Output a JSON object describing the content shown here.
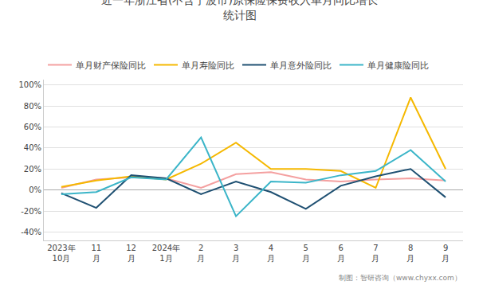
{
  "chart_data": {
    "type": "line",
    "title": "近一年浙江省(不含宁波市)原保险保费收入单月同比增长\n统计图",
    "categories": [
      "2023年\n10月",
      "11\n月",
      "12\n月",
      "2024年\n1月",
      "2\n月",
      "3\n月",
      "4\n月",
      "5\n月",
      "6\n月",
      "7\n月",
      "8\n月",
      "9\n月"
    ],
    "series": [
      {
        "name": "单月财产保险同比",
        "color": "#F4A0A0",
        "values": [
          0.02,
          0.1,
          0.12,
          0.11,
          0.02,
          0.15,
          0.17,
          0.1,
          0.08,
          0.1,
          0.11,
          0.09
        ]
      },
      {
        "name": "单月寿险同比",
        "color": "#F5B800",
        "values": [
          0.03,
          0.09,
          0.13,
          0.1,
          0.25,
          0.45,
          0.2,
          0.2,
          0.18,
          0.02,
          0.88,
          0.2
        ]
      },
      {
        "name": "单月意外险同比",
        "color": "#1F5072",
        "values": [
          -0.03,
          -0.17,
          0.14,
          0.11,
          -0.04,
          0.08,
          -0.02,
          -0.18,
          0.04,
          0.13,
          0.2,
          -0.07
        ]
      },
      {
        "name": "单月健康险同比",
        "color": "#3BB5C8",
        "values": [
          -0.04,
          -0.02,
          0.12,
          0.1,
          0.5,
          -0.25,
          0.08,
          0.07,
          0.14,
          0.18,
          0.38,
          0.08
        ]
      }
    ],
    "ylim": [
      -0.48,
      1.05
    ],
    "yticks": [
      {
        "value": -0.4,
        "label": "-40%"
      },
      {
        "value": -0.2,
        "label": "-20%"
      },
      {
        "value": 0.0,
        "label": "0%"
      },
      {
        "value": 0.2,
        "label": "20%"
      },
      {
        "value": 0.4,
        "label": "40%"
      },
      {
        "value": 0.6,
        "label": "60%"
      },
      {
        "value": 0.8,
        "label": "80%"
      },
      {
        "value": 1.0,
        "label": "100%"
      }
    ],
    "grid": true,
    "legend": "top",
    "annotations": [
      "制图：智研咨询（www.chyxx.com）"
    ]
  }
}
